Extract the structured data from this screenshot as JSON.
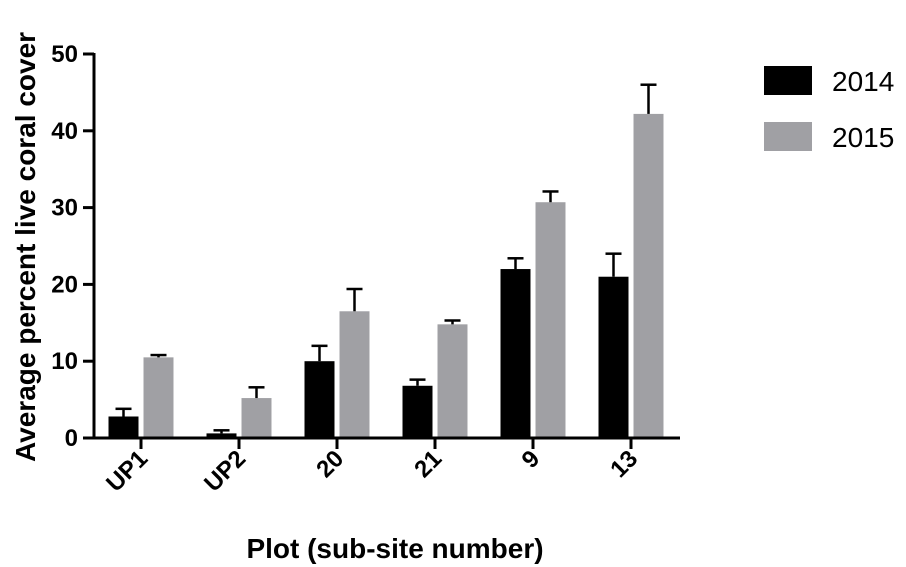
{
  "chart_data": {
    "type": "bar",
    "xlabel": "Plot (sub-site number)",
    "ylabel": "Average percent live coral cover",
    "ylim": [
      0,
      50
    ],
    "yticks": [
      0,
      10,
      20,
      30,
      40,
      50
    ],
    "categories": [
      "UP1",
      "UP2",
      "20",
      "21",
      "9",
      "13"
    ],
    "error_bars": true,
    "legend_position": "top-right",
    "series": [
      {
        "name": "2014",
        "color": "#000000",
        "values": [
          2.8,
          0.6,
          10.0,
          6.8,
          22.0,
          21.0
        ],
        "errors": [
          1.0,
          0.4,
          2.0,
          0.8,
          1.4,
          3.0
        ]
      },
      {
        "name": "2015",
        "color": "#a0a0a4",
        "values": [
          10.5,
          5.2,
          16.5,
          14.8,
          30.7,
          42.2
        ],
        "errors": [
          0.3,
          1.4,
          2.9,
          0.5,
          1.4,
          3.8
        ]
      }
    ]
  }
}
